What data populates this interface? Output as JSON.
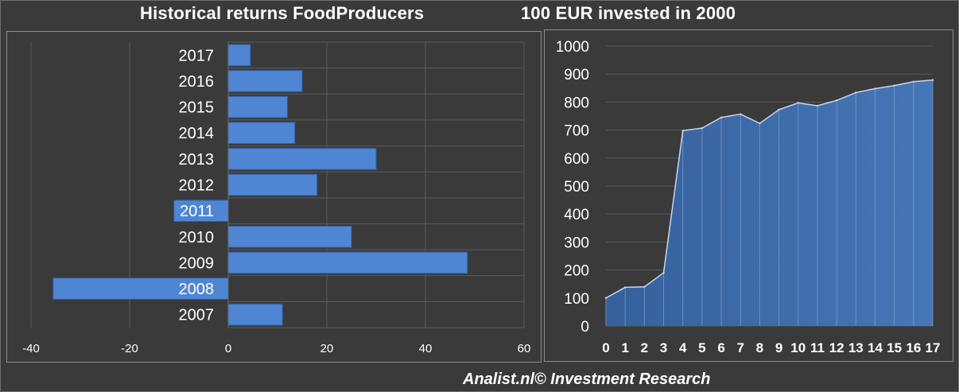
{
  "title_left": "Historical returns FoodProducers",
  "title_right": "100 EUR invested in 2000",
  "footer": "Analist.nl© Investment Research",
  "colors": {
    "background": "#3a3a3a",
    "bar_fill": "#4f86d4",
    "bar_stroke": "#2f5fa8",
    "area_fill": "#3d6aa9",
    "area_line": "#c9d6ec",
    "grid": "#5a5a5a",
    "text": "#ffffff"
  },
  "chart_data": [
    {
      "type": "bar",
      "orientation": "horizontal",
      "categories": [
        "2017",
        "2016",
        "2015",
        "2014",
        "2013",
        "2012",
        "2011",
        "2010",
        "2009",
        "2008",
        "2007"
      ],
      "values": [
        4.5,
        15,
        12,
        13.5,
        30,
        18,
        -11,
        25,
        48.5,
        -35.5,
        11
      ],
      "xlim": [
        -40,
        60
      ],
      "xticks": [
        "-40",
        "-20",
        "0",
        "20",
        "40",
        "60"
      ],
      "grid": "vertical"
    },
    {
      "type": "area",
      "x": [
        0,
        1,
        2,
        3,
        4,
        5,
        6,
        7,
        8,
        9,
        10,
        11,
        12,
        13,
        14,
        15,
        16,
        17
      ],
      "xticks": [
        "0",
        "1",
        "2",
        "3",
        "4",
        "5",
        "6",
        "7",
        "8",
        "9",
        "10",
        "11",
        "12",
        "13",
        "14",
        "15",
        "16",
        "17"
      ],
      "values": [
        100,
        138,
        140,
        190,
        698,
        707,
        745,
        757,
        724,
        773,
        797,
        787,
        806,
        834,
        848,
        859,
        873,
        879
      ],
      "ylim": [
        0,
        1000
      ],
      "yticks": [
        "0",
        "100",
        "200",
        "300",
        "400",
        "500",
        "600",
        "700",
        "800",
        "900",
        "1000"
      ],
      "grid": "horizontal"
    }
  ]
}
